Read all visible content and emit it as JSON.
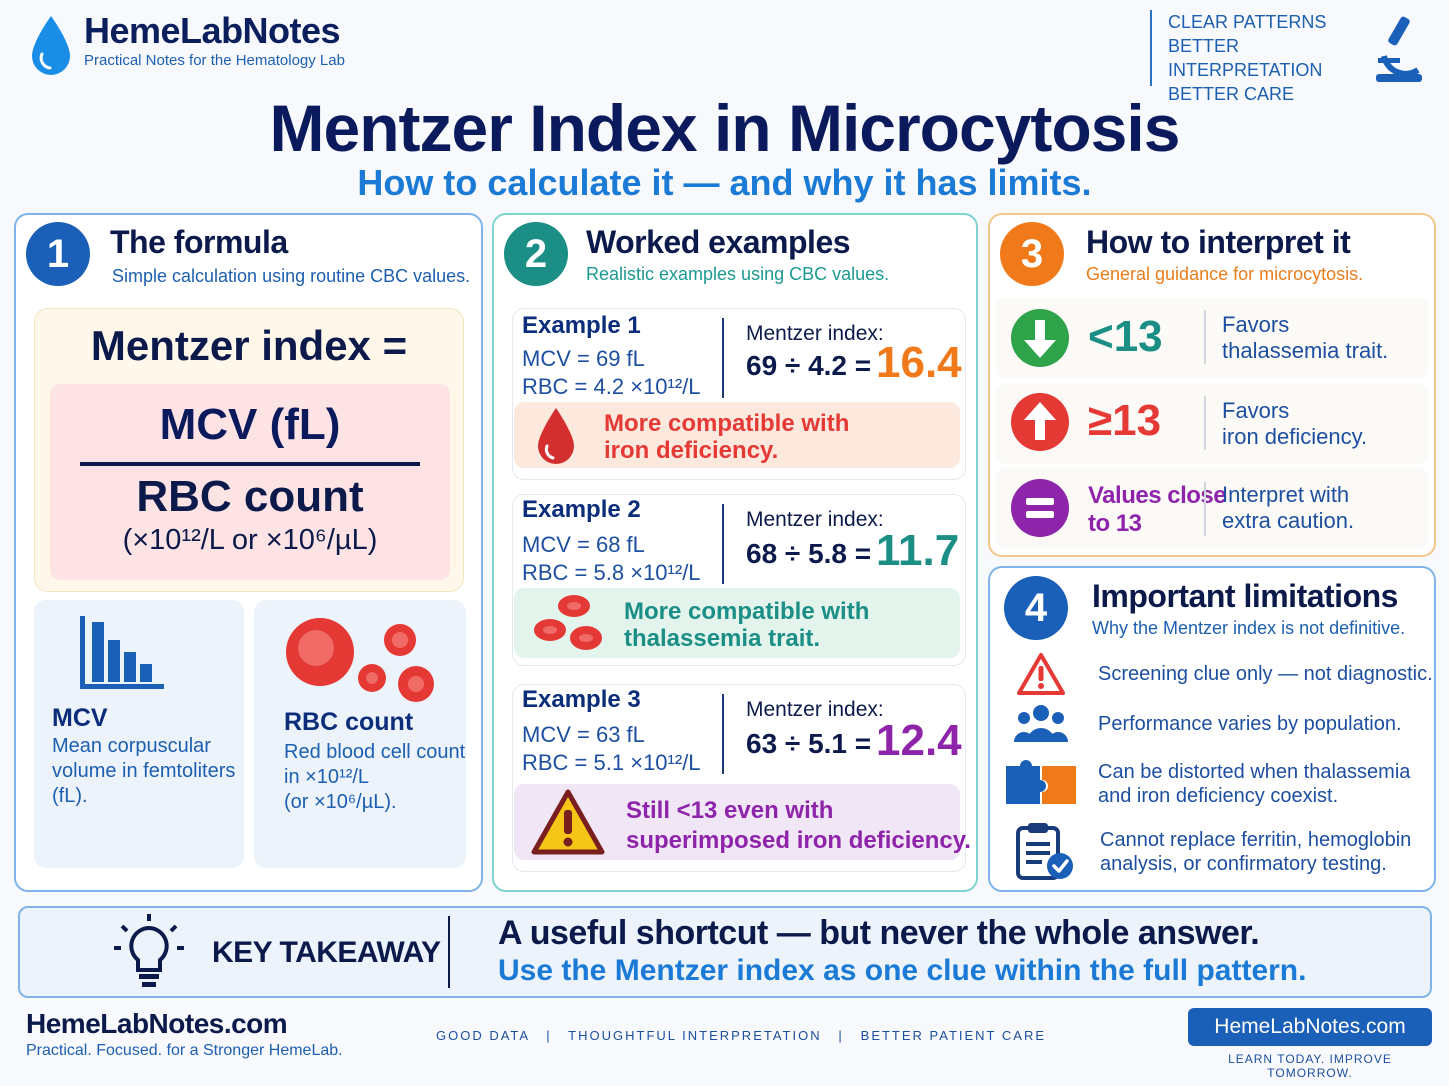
{
  "brand": {
    "name": "HemeLabNotes",
    "tagline": "Practical Notes for the Hematology Lab",
    "slogans": [
      "CLEAR PATTERNS",
      "BETTER INTERPRETATION",
      "BETTER CARE"
    ]
  },
  "title": "Mentzer Index in Microcytosis",
  "subtitle": "How to calculate it — and why it has limits.",
  "colors": {
    "navy": "#0b1a4a",
    "blue": "#1a7ad6",
    "teal": "#1b8f86",
    "orange": "#f07a1a",
    "red": "#e53935",
    "green": "#2ea34a",
    "purple": "#8e24aa"
  },
  "formula": {
    "number": "1",
    "title": "The formula",
    "subtitle": "Simple calculation using routine CBC values.",
    "label": "Mentzer index =",
    "numerator": "MCV (fL)",
    "denominator": "RBC count",
    "units": "(×10¹²/L or ×10⁶/µL)",
    "mcv": {
      "icon": "bar-chart-icon",
      "title": "MCV",
      "desc": [
        "Mean corpuscular",
        "volume in femtoliters",
        "(fL)."
      ]
    },
    "rbc": {
      "icon": "red-cells-icon",
      "title": "RBC count",
      "desc": [
        "Red blood cell count",
        "in ×10¹²/L",
        "(or ×10⁶/µL)."
      ]
    }
  },
  "examples": {
    "number": "2",
    "title": "Worked examples",
    "subtitle": "Realistic examples using CBC values.",
    "items": [
      {
        "title": "Example 1",
        "mcv": "MCV = 69 fL",
        "rbc": "RBC = 4.2 ×10¹²/L",
        "mlabel": "Mentzer index:",
        "calc": "69 ÷ 4.2 =",
        "result": "16.4",
        "note": [
          "More compatible with",
          "iron deficiency."
        ]
      },
      {
        "title": "Example 2",
        "mcv": "MCV = 68 fL",
        "rbc": "RBC = 5.8 ×10¹²/L",
        "mlabel": "Mentzer index:",
        "calc": "68 ÷ 5.8 =",
        "result": "11.7",
        "note": [
          "More compatible with",
          "thalassemia trait."
        ]
      },
      {
        "title": "Example 3",
        "mcv": "MCV = 63 fL",
        "rbc": "RBC = 5.1 ×10¹²/L",
        "mlabel": "Mentzer index:",
        "calc": "63 ÷ 5.1 =",
        "result": "12.4",
        "note": [
          "Still <13 even with",
          "superimposed iron deficiency."
        ]
      }
    ]
  },
  "interpret": {
    "number": "3",
    "title": "How to interpret it",
    "subtitle": "General guidance for microcytosis.",
    "rows": [
      {
        "icon": "arrow-down-icon",
        "value": "<13",
        "text": [
          "Favors",
          "thalassemia trait."
        ]
      },
      {
        "icon": "arrow-up-icon",
        "value": "≥13",
        "text": [
          "Favors",
          "iron deficiency."
        ]
      },
      {
        "icon": "equals-icon",
        "value": [
          "Values close",
          "to 13"
        ],
        "text": [
          "Interpret with",
          "extra caution."
        ]
      }
    ]
  },
  "limits": {
    "number": "4",
    "title": "Important limitations",
    "subtitle": "Why the Mentzer index is not definitive.",
    "items": [
      {
        "icon": "warning-icon",
        "text": [
          "Screening clue only — not diagnostic."
        ]
      },
      {
        "icon": "people-icon",
        "text": [
          "Performance varies by population."
        ]
      },
      {
        "icon": "puzzle-icon",
        "text": [
          "Can be distorted when thalassemia",
          "and iron deficiency coexist."
        ]
      },
      {
        "icon": "clipboard-icon",
        "text": [
          "Cannot replace ferritin, hemoglobin",
          "analysis, or confirmatory testing."
        ]
      }
    ]
  },
  "takeaway": {
    "label": "KEY TAKEAWAY",
    "line1": "A useful shortcut — but never the whole answer.",
    "line2": "Use the Mentzer index as one clue within the full pattern."
  },
  "footer": {
    "brand": "HemeLabNotes.com",
    "tag": "Practical. Focused. for a Stronger HemeLab.",
    "mid": "GOOD DATA   |   THOUGHTFUL INTERPRETATION   |   BETTER PATIENT CARE",
    "button": "HemeLabNotes.com",
    "motto": "LEARN TODAY. IMPROVE TOMORROW."
  }
}
